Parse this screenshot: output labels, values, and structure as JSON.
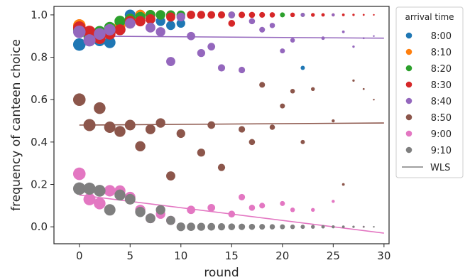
{
  "chart_data": {
    "type": "scatter",
    "xlabel": "round",
    "ylabel": "frequency of canteen choice",
    "xlim": [
      -2.5,
      30.5
    ],
    "ylim": [
      -0.08,
      1.04
    ],
    "xticks": [
      0,
      5,
      10,
      15,
      20,
      25,
      30
    ],
    "yticks": [
      "0.0",
      "0.2",
      "0.4",
      "0.6",
      "0.8",
      "1.0"
    ],
    "ytick_values": [
      0.0,
      0.2,
      0.4,
      0.6,
      0.8,
      1.0
    ],
    "grid": false,
    "legend": {
      "title": "arrival time",
      "placement": "outside-right",
      "wls_label": "WLS",
      "wls_color": "#808080"
    },
    "size_note": "marker size shrinks with round",
    "series": [
      {
        "name": "8:00",
        "color": "#1f77b4",
        "points": [
          [
            0,
            0.86
          ],
          [
            1,
            0.88
          ],
          [
            2,
            0.88
          ],
          [
            3,
            0.87
          ],
          [
            4,
            0.93
          ],
          [
            5,
            1.0
          ],
          [
            6,
            1.0
          ],
          [
            7,
            0.98
          ],
          [
            8,
            0.97
          ],
          [
            9,
            0.95
          ],
          [
            10,
            0.96
          ],
          [
            22,
            0.75
          ]
        ]
      },
      {
        "name": "8:10",
        "color": "#ff7f0e",
        "points": [
          [
            0,
            0.95
          ],
          [
            1,
            0.92
          ],
          [
            2,
            0.89
          ],
          [
            3,
            0.92
          ],
          [
            4,
            0.95
          ],
          [
            5,
            0.98
          ],
          [
            6,
            1.0
          ],
          [
            7,
            1.0
          ],
          [
            8,
            1.0
          ],
          [
            9,
            1.0
          ]
        ]
      },
      {
        "name": "8:20",
        "color": "#2ca02c",
        "points": [
          [
            0,
            0.93
          ],
          [
            1,
            0.9
          ],
          [
            2,
            0.92
          ],
          [
            3,
            0.94
          ],
          [
            4,
            0.97
          ],
          [
            5,
            0.98
          ],
          [
            6,
            0.99
          ],
          [
            7,
            1.0
          ],
          [
            8,
            1.0
          ],
          [
            9,
            1.0
          ],
          [
            10,
            1.0
          ],
          [
            15,
            1.0
          ],
          [
            20,
            1.0
          ],
          [
            22,
            1.0
          ]
        ]
      },
      {
        "name": "8:30",
        "color": "#d62728",
        "points": [
          [
            0,
            0.94
          ],
          [
            1,
            0.92
          ],
          [
            2,
            0.89
          ],
          [
            3,
            0.91
          ],
          [
            4,
            0.93
          ],
          [
            5,
            0.97
          ],
          [
            6,
            0.97
          ],
          [
            7,
            0.98
          ],
          [
            9,
            0.99
          ],
          [
            11,
            1.0
          ],
          [
            12,
            1.0
          ],
          [
            13,
            1.0
          ],
          [
            14,
            1.0
          ],
          [
            15,
            0.96
          ],
          [
            16,
            1.0
          ],
          [
            17,
            1.0
          ],
          [
            18,
            1.0
          ],
          [
            19,
            1.0
          ],
          [
            21,
            1.0
          ],
          [
            23,
            1.0
          ],
          [
            24,
            1.0
          ],
          [
            25,
            1.0
          ],
          [
            26,
            1.0
          ],
          [
            27,
            1.0
          ],
          [
            28,
            1.0
          ],
          [
            29,
            1.0
          ]
        ]
      },
      {
        "name": "8:40",
        "color": "#9467bd",
        "points": [
          [
            0,
            0.92
          ],
          [
            1,
            0.88
          ],
          [
            2,
            0.91
          ],
          [
            3,
            0.93
          ],
          [
            5,
            0.96
          ],
          [
            7,
            0.94
          ],
          [
            8,
            0.92
          ],
          [
            9,
            0.78
          ],
          [
            10,
            0.99
          ],
          [
            11,
            0.9
          ],
          [
            12,
            0.82
          ],
          [
            13,
            0.85
          ],
          [
            14,
            0.75
          ],
          [
            15,
            1.0
          ],
          [
            16,
            0.74
          ],
          [
            17,
            0.97
          ],
          [
            18,
            0.93
          ],
          [
            19,
            0.95
          ],
          [
            20,
            0.83
          ],
          [
            21,
            0.88
          ],
          [
            22,
            1.0
          ],
          [
            24,
            0.89
          ],
          [
            25,
            1.0
          ],
          [
            26,
            0.92
          ],
          [
            27,
            0.85
          ],
          [
            28,
            0.89
          ],
          [
            29,
            0.9
          ]
        ]
      },
      {
        "name": "8:50",
        "color": "#8c564b",
        "points": [
          [
            0,
            0.6
          ],
          [
            1,
            0.48
          ],
          [
            2,
            0.56
          ],
          [
            3,
            0.47
          ],
          [
            4,
            0.45
          ],
          [
            5,
            0.48
          ],
          [
            6,
            0.38
          ],
          [
            7,
            0.46
          ],
          [
            8,
            0.49
          ],
          [
            9,
            0.24
          ],
          [
            10,
            0.44
          ],
          [
            12,
            0.35
          ],
          [
            13,
            0.48
          ],
          [
            14,
            0.28
          ],
          [
            16,
            0.46
          ],
          [
            17,
            0.4
          ],
          [
            18,
            0.67
          ],
          [
            19,
            0.47
          ],
          [
            20,
            0.57
          ],
          [
            21,
            0.64
          ],
          [
            22,
            0.4
          ],
          [
            23,
            0.65
          ],
          [
            25,
            0.5
          ],
          [
            26,
            0.2
          ],
          [
            27,
            0.69
          ],
          [
            28,
            0.65
          ],
          [
            29,
            0.6
          ]
        ]
      },
      {
        "name": "9:00",
        "color": "#e377c2",
        "points": [
          [
            0,
            0.25
          ],
          [
            1,
            0.13
          ],
          [
            2,
            0.11
          ],
          [
            3,
            0.17
          ],
          [
            4,
            0.17
          ],
          [
            5,
            0.14
          ],
          [
            6,
            0.08
          ],
          [
            7,
            0.04
          ],
          [
            8,
            0.06
          ],
          [
            9,
            0.03
          ],
          [
            11,
            0.08
          ],
          [
            13,
            0.09
          ],
          [
            15,
            0.06
          ],
          [
            16,
            0.14
          ],
          [
            17,
            0.09
          ],
          [
            18,
            0.1
          ],
          [
            20,
            0.11
          ],
          [
            21,
            0.08
          ],
          [
            23,
            0.08
          ],
          [
            25,
            0.12
          ],
          [
            28,
            0.0
          ]
        ]
      },
      {
        "name": "9:10",
        "color": "#7f7f7f",
        "points": [
          [
            0,
            0.18
          ],
          [
            1,
            0.18
          ],
          [
            2,
            0.17
          ],
          [
            3,
            0.08
          ],
          [
            4,
            0.15
          ],
          [
            5,
            0.13
          ],
          [
            6,
            0.07
          ],
          [
            7,
            0.04
          ],
          [
            8,
            0.08
          ],
          [
            9,
            0.03
          ],
          [
            10,
            0.0
          ],
          [
            11,
            0.0
          ],
          [
            12,
            0.0
          ],
          [
            13,
            0.0
          ],
          [
            14,
            0.0
          ],
          [
            15,
            0.0
          ],
          [
            16,
            0.0
          ],
          [
            17,
            0.0
          ],
          [
            18,
            0.0
          ],
          [
            19,
            0.0
          ],
          [
            20,
            0.0
          ],
          [
            21,
            0.0
          ],
          [
            22,
            0.0
          ],
          [
            23,
            0.0
          ],
          [
            24,
            0.0
          ],
          [
            25,
            0.0
          ],
          [
            26,
            0.0
          ],
          [
            27,
            0.0
          ],
          [
            28,
            0.0
          ],
          [
            29,
            0.0
          ]
        ]
      }
    ],
    "wls_lines": [
      {
        "arrival": "8:40",
        "color": "#9467bd",
        "x": [
          0,
          30
        ],
        "y": [
          0.9,
          0.89
        ]
      },
      {
        "arrival": "8:50",
        "color": "#8c564b",
        "x": [
          0,
          30
        ],
        "y": [
          0.48,
          0.49
        ]
      },
      {
        "arrival": "9:00",
        "color": "#e377c2",
        "x": [
          0,
          30
        ],
        "y": [
          0.15,
          -0.03
        ]
      }
    ]
  }
}
